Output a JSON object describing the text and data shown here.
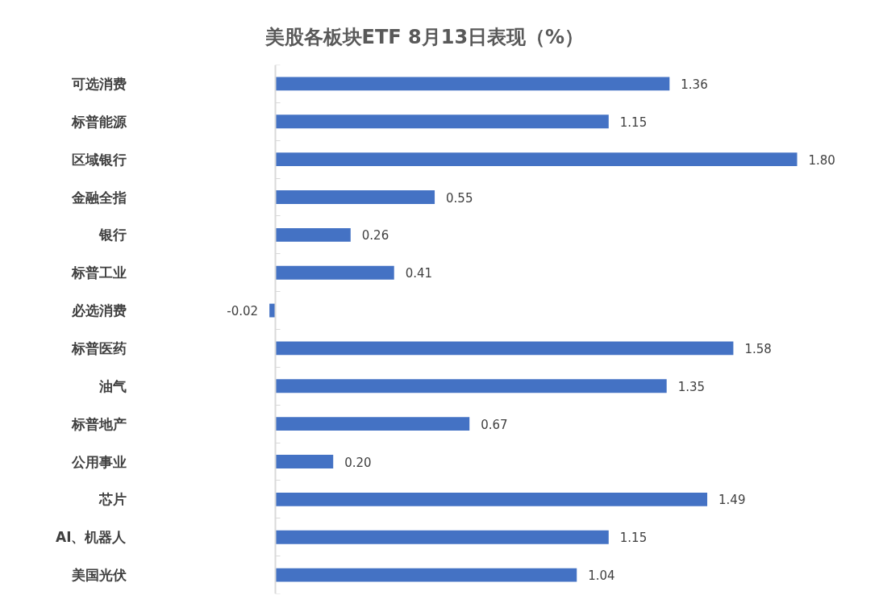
{
  "chart_data": {
    "type": "bar",
    "orientation": "horizontal",
    "title": "美股各板块ETF 8月13日表现（%）",
    "categories": [
      "可选消费",
      "标普能源",
      "区域银行",
      "金融全指",
      "银行",
      "标普工业",
      "必选消费",
      "标普医药",
      "油气",
      "标普地产",
      "公用事业",
      "芯片",
      "AI、机器人",
      "美国光伏"
    ],
    "values": [
      1.36,
      1.15,
      1.8,
      0.55,
      0.26,
      0.41,
      -0.02,
      1.58,
      1.35,
      0.67,
      0.2,
      1.49,
      1.15,
      1.04
    ],
    "value_labels": [
      "1.36",
      "1.15",
      "1.80",
      "0.55",
      "0.26",
      "0.41",
      "-0.02",
      "1.58",
      "1.35",
      "0.67",
      "0.20",
      "1.49",
      "1.15",
      "1.04"
    ],
    "color": "#4472c4",
    "tick_labels": "y"
  }
}
